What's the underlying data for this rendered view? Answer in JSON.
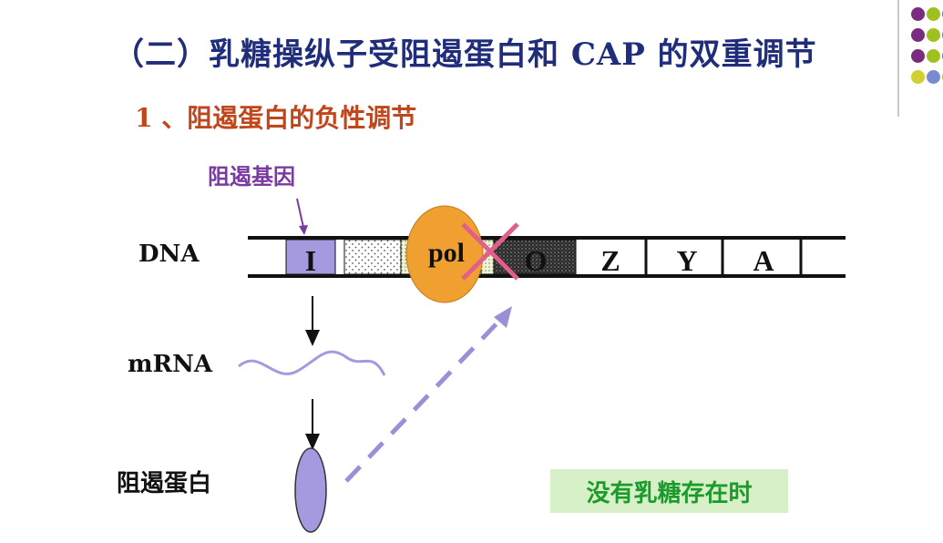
{
  "title": "（二）乳糖操纵子受阻遏蛋白和 CAP 的双重调节",
  "subtitle": "1 、阻遏蛋白的负性调节",
  "labels": {
    "repressor_gene": "阻遏基因",
    "dna": "DNA",
    "mrna": "mRNA",
    "repressor_protein": "阻遏蛋白"
  },
  "dna_segments": {
    "i": "I",
    "o": "O",
    "z": "Z",
    "y": "Y",
    "a": "A"
  },
  "polymerase": "pol",
  "condition": "没有乳糖存在时",
  "colors": {
    "title": "#1f2d7a",
    "subtitle": "#c0461c",
    "gene_label": "#7a3ba0",
    "i_gene": "#a59ae0",
    "polymerase": "#f0a030",
    "repressor": "#a59ae0",
    "cross_mark": "#e0608a",
    "dashed_arrow": "#9b90d8",
    "condition_bg": "#d8f0c8",
    "condition_text": "#1c9a2c"
  },
  "decor_dots": [
    "#7b2c7e",
    "#a0c020",
    "#4a8aa0",
    "#7b2c7e",
    "#a0c020",
    "#4a8aa0",
    "#7b2c7e",
    "#a0c020",
    "#4a8aa0",
    "#d0d030",
    "#7a8ad0",
    "#a0c020"
  ]
}
